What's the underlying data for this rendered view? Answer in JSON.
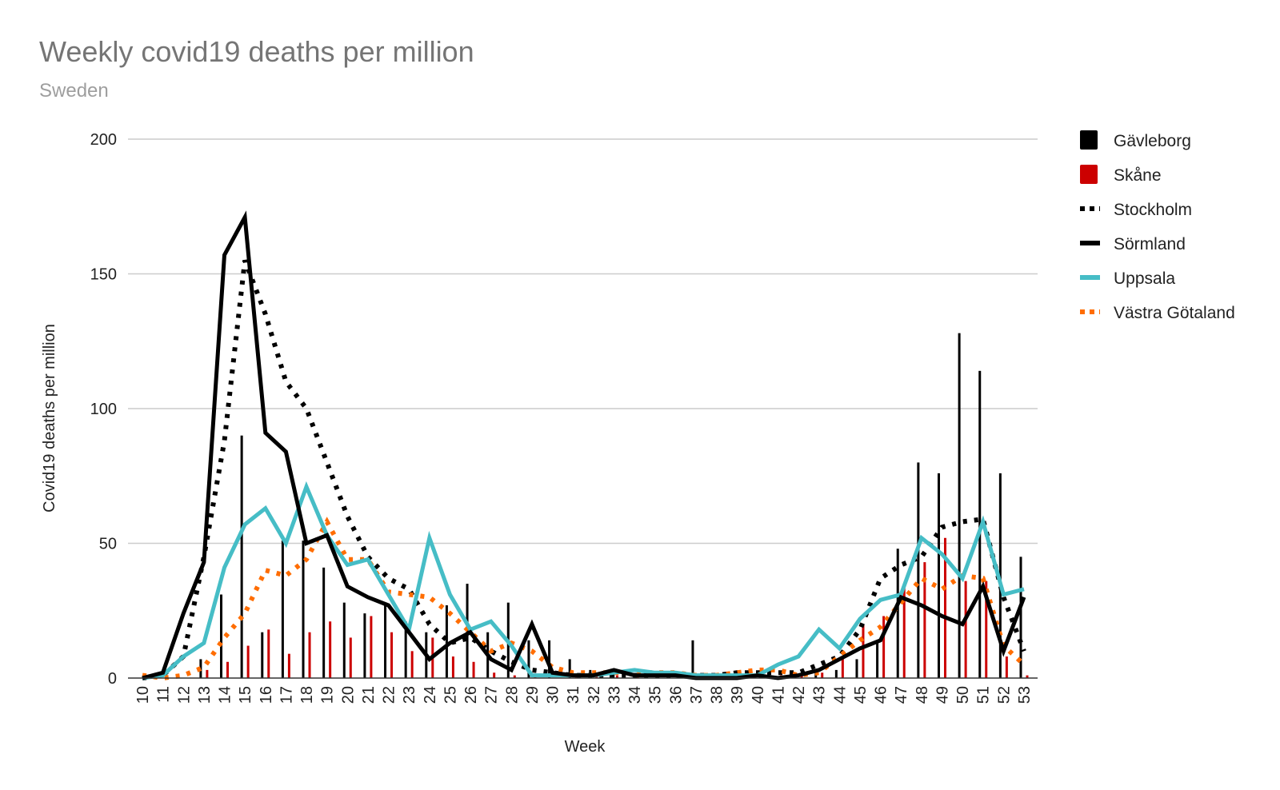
{
  "chart_data": {
    "type": "bar+line",
    "title": "Weekly covid19 deaths per million",
    "subtitle": "Sweden",
    "xlabel": "Week",
    "ylabel": "Covid19 deaths per million",
    "ylim": [
      0,
      200
    ],
    "yticks": [
      0,
      50,
      100,
      150,
      200
    ],
    "grid": true,
    "legend_position": "right",
    "categories": [
      "10",
      "11",
      "12",
      "13",
      "14",
      "15",
      "16",
      "17",
      "18",
      "19",
      "20",
      "21",
      "22",
      "23",
      "24",
      "25",
      "26",
      "27",
      "28",
      "29",
      "30",
      "31",
      "32",
      "33",
      "34",
      "35",
      "36",
      "37",
      "38",
      "39",
      "40",
      "41",
      "42",
      "43",
      "44",
      "45",
      "46",
      "47",
      "48",
      "49",
      "50",
      "51",
      "52",
      "53"
    ],
    "series": [
      {
        "name": "Gävleborg",
        "kind": "bar",
        "color": "#000000",
        "values": [
          0,
          0,
          0,
          7,
          31,
          90,
          17,
          51,
          51,
          41,
          28,
          24,
          27,
          21,
          17,
          27,
          35,
          17,
          28,
          14,
          14,
          7,
          3,
          3,
          0,
          0,
          0,
          14,
          0,
          0,
          0,
          0,
          0,
          3,
          3,
          7,
          14,
          48,
          80,
          76,
          128,
          114,
          76,
          45
        ]
      },
      {
        "name": "Skåne",
        "kind": "bar",
        "color": "#cc0000",
        "values": [
          0,
          0,
          0,
          3,
          6,
          12,
          18,
          9,
          17,
          21,
          15,
          23,
          17,
          10,
          15,
          8,
          6,
          2,
          1,
          1,
          0,
          1,
          1,
          1,
          1,
          0,
          0,
          0,
          0,
          0,
          0,
          1,
          1,
          2,
          7,
          20,
          23,
          35,
          43,
          52,
          36,
          36,
          8,
          1
        ]
      },
      {
        "name": "Stockholm",
        "kind": "line",
        "style": "dotted",
        "color": "#000000",
        "values": [
          0,
          1,
          8,
          45,
          88,
          155,
          135,
          110,
          100,
          80,
          60,
          45,
          37,
          33,
          20,
          13,
          15,
          10,
          6,
          3,
          2,
          1,
          1,
          1,
          1,
          1,
          1,
          1,
          1,
          2,
          2,
          2,
          2,
          5,
          8,
          18,
          37,
          42,
          45,
          56,
          58,
          59,
          30,
          10
        ]
      },
      {
        "name": "Sörmland",
        "kind": "line",
        "style": "solid",
        "color": "#000000",
        "values": [
          0,
          2,
          24,
          43,
          157,
          171,
          91,
          84,
          50,
          53,
          34,
          30,
          27,
          17,
          7,
          13,
          17,
          7,
          3,
          20,
          2,
          1,
          1,
          3,
          1,
          1,
          1,
          0,
          0,
          0,
          1,
          0,
          1,
          3,
          7,
          11,
          14,
          30,
          27,
          23,
          20,
          34,
          10,
          30
        ]
      },
      {
        "name": "Uppsala",
        "kind": "line",
        "style": "solid",
        "color": "#46bdc6",
        "values": [
          0,
          1,
          8,
          13,
          41,
          57,
          63,
          50,
          71,
          53,
          42,
          44,
          31,
          18,
          52,
          31,
          18,
          21,
          12,
          1,
          1,
          1,
          1,
          2,
          3,
          2,
          2,
          1,
          1,
          1,
          1,
          5,
          8,
          18,
          11,
          22,
          29,
          31,
          52,
          46,
          37,
          58,
          31,
          33
        ]
      },
      {
        "name": "Västra Götaland",
        "kind": "line",
        "style": "dotted",
        "color": "#ff6d01",
        "values": [
          1,
          0,
          1,
          4,
          15,
          24,
          40,
          38,
          44,
          58,
          44,
          44,
          32,
          31,
          30,
          24,
          17,
          10,
          13,
          10,
          4,
          2,
          2,
          2,
          2,
          2,
          2,
          1,
          1,
          2,
          3,
          3,
          1,
          2,
          8,
          14,
          19,
          28,
          37,
          33,
          38,
          37,
          12,
          5
        ]
      }
    ]
  }
}
